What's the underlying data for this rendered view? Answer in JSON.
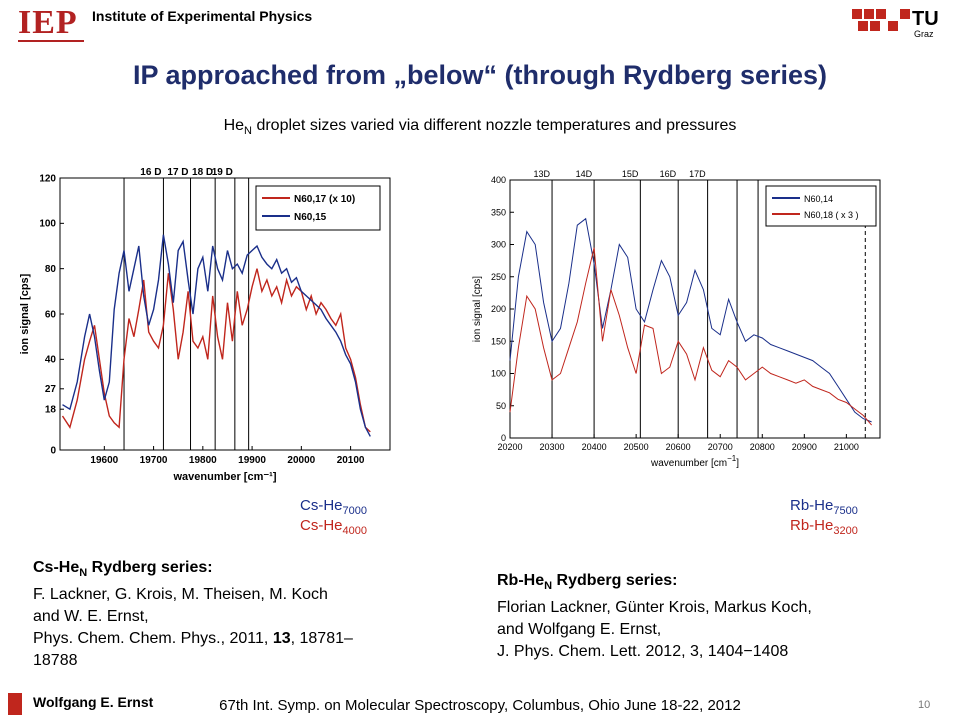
{
  "header": {
    "logo_text": "IEP",
    "institute": "Institute of Experimental Physics",
    "tu_logo_text": "TU",
    "tu_logo_sub": "Graz"
  },
  "title": "IP approached from „below“ (through Rydberg series)",
  "subtitle": {
    "pre": "He",
    "sub": "N",
    "post": " droplet sizes varied via different nozzle temperatures and pressures"
  },
  "colors": {
    "blue": "#1a2f8a",
    "red": "#c0261d",
    "title": "#1f2d6b"
  },
  "chart_data": [
    {
      "type": "line",
      "xlabel": "wavenumber [cm⁻¹]",
      "ylabel": "ion signal [cps]",
      "xlim": [
        19510,
        20180
      ],
      "ylim": [
        0,
        120
      ],
      "xticks": [
        19600,
        19700,
        19800,
        19900,
        20000,
        20100
      ],
      "yticks": [
        0,
        18,
        27,
        40,
        60,
        80,
        100,
        120
      ],
      "ytick_labels": [
        "0",
        "18",
        "27",
        "40",
        "60",
        "80",
        "100",
        "120"
      ],
      "vlines": [
        {
          "x": 19640,
          "label": ""
        },
        {
          "x": 19720,
          "label": "16 D"
        },
        {
          "x": 19775,
          "label": "17 D"
        },
        {
          "x": 19825,
          "label": "18 D"
        },
        {
          "x": 19865,
          "label": "19 D"
        },
        {
          "x": 19893,
          "label": ""
        }
      ],
      "legend": [
        "N60,17 (x 10)",
        "N60,15"
      ],
      "legend_placement": "top-right",
      "series": [
        {
          "name": "N60,17 (x 10)",
          "color": "#c0261d",
          "x": [
            19515,
            19530,
            19545,
            19560,
            19570,
            19580,
            19590,
            19600,
            19610,
            19620,
            19630,
            19640,
            19650,
            19660,
            19670,
            19680,
            19690,
            19700,
            19710,
            19720,
            19730,
            19740,
            19750,
            19760,
            19770,
            19780,
            19790,
            19800,
            19810,
            19820,
            19830,
            19840,
            19850,
            19860,
            19870,
            19880,
            19890,
            19900,
            19910,
            19920,
            19930,
            19940,
            19950,
            19960,
            19970,
            19980,
            19990,
            20000,
            20010,
            20020,
            20030,
            20040,
            20050,
            20060,
            20070,
            20080,
            20090,
            20100,
            20110,
            20120,
            20130,
            20140
          ],
          "y": [
            15,
            10,
            22,
            40,
            48,
            55,
            40,
            25,
            15,
            12,
            10,
            40,
            58,
            50,
            62,
            75,
            52,
            48,
            45,
            55,
            78,
            62,
            40,
            52,
            70,
            48,
            45,
            50,
            40,
            68,
            50,
            40,
            65,
            48,
            70,
            55,
            62,
            72,
            80,
            70,
            75,
            68,
            72,
            65,
            75,
            68,
            72,
            70,
            62,
            68,
            60,
            65,
            62,
            58,
            55,
            60,
            45,
            40,
            32,
            20,
            10,
            8
          ]
        },
        {
          "name": "N60,15",
          "color": "#1a2f8a",
          "x": [
            19515,
            19530,
            19545,
            19560,
            19570,
            19580,
            19590,
            19600,
            19610,
            19620,
            19630,
            19640,
            19650,
            19660,
            19670,
            19680,
            19690,
            19700,
            19710,
            19720,
            19730,
            19740,
            19750,
            19760,
            19770,
            19780,
            19790,
            19800,
            19810,
            19820,
            19830,
            19840,
            19850,
            19860,
            19870,
            19880,
            19890,
            19900,
            19910,
            19920,
            19930,
            19940,
            19950,
            19960,
            19970,
            19980,
            19990,
            20000,
            20010,
            20020,
            20030,
            20040,
            20050,
            20060,
            20070,
            20080,
            20090,
            20100,
            20110,
            20120,
            20130,
            20140
          ],
          "y": [
            20,
            18,
            30,
            50,
            60,
            50,
            35,
            22,
            30,
            62,
            78,
            88,
            70,
            80,
            90,
            68,
            55,
            62,
            75,
            95,
            82,
            65,
            88,
            92,
            75,
            60,
            80,
            85,
            70,
            90,
            80,
            75,
            88,
            80,
            82,
            78,
            86,
            88,
            90,
            85,
            82,
            80,
            84,
            78,
            80,
            74,
            76,
            70,
            68,
            66,
            64,
            62,
            58,
            55,
            52,
            48,
            42,
            38,
            30,
            18,
            10,
            6
          ]
        }
      ]
    },
    {
      "type": "line",
      "xlabel": "wavenumber [cm",
      "xlabel_sup": "−1",
      "xlabel_end": "]",
      "ylabel": "ion signal [cps]",
      "xlim": [
        20200,
        21080
      ],
      "ylim": [
        0,
        400
      ],
      "xticks": [
        20200,
        20300,
        20400,
        20500,
        20600,
        20700,
        20800,
        20900,
        21000
      ],
      "yticks": [
        0,
        50,
        100,
        150,
        200,
        250,
        300,
        350,
        400
      ],
      "vlines": [
        {
          "x": 20300,
          "label": "13D"
        },
        {
          "x": 20400,
          "label": "14D"
        },
        {
          "x": 20510,
          "label": "15D"
        },
        {
          "x": 20600,
          "label": "16D"
        },
        {
          "x": 20670,
          "label": "17D"
        },
        {
          "x": 20740,
          "label": ""
        },
        {
          "x": 20790,
          "label": ""
        }
      ],
      "dashed_vline": 21045,
      "legend": [
        "N60,14",
        "N60,18 ( x 3 )"
      ],
      "legend_placement": "top-right",
      "series": [
        {
          "name": "N60,14",
          "color": "#1a2f8a",
          "x": [
            20200,
            20220,
            20240,
            20260,
            20280,
            20300,
            20320,
            20340,
            20360,
            20380,
            20400,
            20420,
            20440,
            20460,
            20480,
            20500,
            20520,
            20540,
            20560,
            20580,
            20600,
            20620,
            20640,
            20660,
            20680,
            20700,
            20720,
            20740,
            20760,
            20780,
            20800,
            20820,
            20840,
            20860,
            20880,
            20900,
            20920,
            20940,
            20960,
            20980,
            21000,
            21020,
            21040,
            21060
          ],
          "y": [
            120,
            250,
            320,
            300,
            210,
            150,
            170,
            240,
            330,
            340,
            270,
            170,
            230,
            300,
            280,
            200,
            180,
            230,
            275,
            250,
            190,
            210,
            260,
            230,
            170,
            160,
            215,
            180,
            150,
            160,
            155,
            145,
            140,
            135,
            130,
            125,
            120,
            110,
            100,
            80,
            60,
            40,
            30,
            25
          ]
        },
        {
          "name": "N60,18 ( x 3 )",
          "color": "#c0261d",
          "x": [
            20200,
            20220,
            20240,
            20260,
            20280,
            20300,
            20320,
            20340,
            20360,
            20380,
            20400,
            20420,
            20440,
            20460,
            20480,
            20500,
            20520,
            20540,
            20560,
            20580,
            20600,
            20620,
            20640,
            20660,
            20680,
            20700,
            20720,
            20740,
            20760,
            20780,
            20800,
            20820,
            20840,
            20860,
            20880,
            20900,
            20920,
            20940,
            20960,
            20980,
            21000,
            21020,
            21040,
            21060
          ],
          "y": [
            40,
            140,
            220,
            200,
            140,
            90,
            100,
            140,
            180,
            240,
            295,
            150,
            230,
            190,
            140,
            100,
            175,
            170,
            100,
            110,
            150,
            130,
            90,
            140,
            105,
            95,
            120,
            110,
            90,
            100,
            110,
            100,
            95,
            90,
            85,
            90,
            80,
            75,
            70,
            60,
            55,
            45,
            35,
            20
          ]
        }
      ]
    }
  ],
  "labels_left": {
    "pre1": "Cs-He",
    "sub1": "7000",
    "pre2": "Cs-He",
    "sub2": "4000"
  },
  "labels_right": {
    "pre1": "Rb-He",
    "sub1": "7500",
    "pre2": "Rb-He",
    "sub2": "3200"
  },
  "ref_left": {
    "title_pre": "Cs-He",
    "title_sub": "N",
    "title_post": " Rydberg series:",
    "line1": "F. Lackner, G. Krois, M. Theisen, M. Koch",
    "line2": "and W. E. Ernst,",
    "line3_pre": "Phys. Chem. Chem. Phys., 2011, ",
    "line3_bold": "13",
    "line3_post": ", 18781–",
    "line4": "18788"
  },
  "ref_right": {
    "title_pre": "Rb-He",
    "title_sub": "N",
    "title_post": " Rydberg series:",
    "line1": "Florian Lackner, Günter Krois, Markus Koch,",
    "line2": "and Wolfgang E. Ernst,",
    "line3": "J. Phys. Chem. Lett. 2012, 3, 1404−1408"
  },
  "footer": {
    "author": "Wolfgang E. Ernst",
    "conference": "67th Int. Symp. on Molecular Spectroscopy, Columbus, Ohio June 18-22, 2012",
    "page": "10"
  }
}
